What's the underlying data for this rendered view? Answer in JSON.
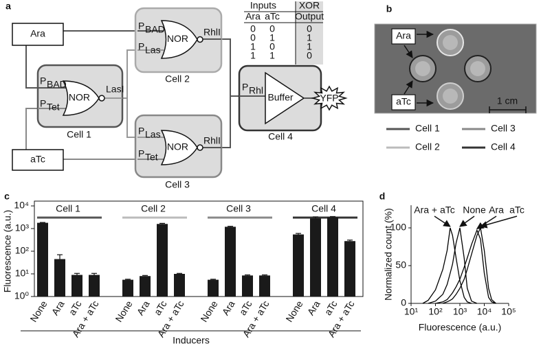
{
  "panel_a": {
    "label": "a",
    "inputs": [
      "Ara",
      "aTc"
    ],
    "cells": [
      "Cell 1",
      "Cell 2",
      "Cell 3",
      "Cell 4"
    ],
    "gates": [
      "NOR",
      "NOR",
      "NOR",
      "Buffer"
    ],
    "promoters": [
      {
        "main": "P",
        "sub": "BAD"
      },
      {
        "main": "P",
        "sub": "Tet"
      },
      {
        "main": "P",
        "sub": "BAD"
      },
      {
        "main": "P",
        "sub": "Las"
      },
      {
        "main": "P",
        "sub": "Las"
      },
      {
        "main": "P",
        "sub": "Tet"
      },
      {
        "main": "P",
        "sub": "Rhl"
      }
    ],
    "outputs": [
      "LasI",
      "RhlI",
      "RhlI"
    ],
    "reporter": "YFP",
    "truth_table": {
      "header": [
        "Inputs",
        "XOR"
      ],
      "columns": [
        "Ara",
        "aTc",
        "Output"
      ],
      "rows": [
        [
          0,
          0,
          0
        ],
        [
          0,
          1,
          1
        ],
        [
          1,
          0,
          1
        ],
        [
          1,
          1,
          0
        ]
      ]
    }
  },
  "panel_b": {
    "label": "b",
    "labels": [
      "Ara",
      "aTc"
    ],
    "scale": "1 cm",
    "legend": [
      {
        "name": "Cell 1",
        "color": "#555555"
      },
      {
        "name": "Cell 3",
        "color": "#888888"
      },
      {
        "name": "Cell 2",
        "color": "#bbbbbb"
      },
      {
        "name": "Cell 4",
        "color": "#333333"
      }
    ]
  },
  "chart_data": [
    {
      "type": "bar",
      "panel_label": "c",
      "y_label": "Fluorescence (a.u.)",
      "x_label": "Inducers",
      "categories": [
        "None",
        "Ara",
        "aTc",
        "Ara + aTc"
      ],
      "bar_color": "#1a1a1a",
      "log_y": true,
      "ylim": [
        1,
        10000
      ],
      "yticks": [
        {
          "value": 1,
          "label": "10⁰"
        },
        {
          "value": 10,
          "label": "10¹"
        },
        {
          "value": 100,
          "label": "10²"
        },
        {
          "value": 1000,
          "label": "10³"
        },
        {
          "value": 10000,
          "label": "10⁴"
        }
      ],
      "series": [
        {
          "name": "Cell 1",
          "color": "#555555",
          "values": [
            1800,
            45,
            9,
            9
          ],
          "errors": [
            60,
            25,
            1.5,
            1.5
          ]
        },
        {
          "name": "Cell 2",
          "color": "#bbbbbb",
          "values": [
            5.5,
            8,
            1600,
            10
          ],
          "errors": [
            0.3,
            0.5,
            100,
            0.5
          ]
        },
        {
          "name": "Cell 3",
          "color": "#888888",
          "values": [
            5.5,
            1200,
            8.5,
            8.5
          ],
          "errors": [
            0.3,
            60,
            0.5,
            0.5
          ]
        },
        {
          "name": "Cell 4",
          "color": "#333333",
          "values": [
            550,
            2800,
            3200,
            280
          ],
          "errors": [
            60,
            500,
            200,
            30
          ]
        }
      ]
    },
    {
      "type": "line",
      "panel_label": "d",
      "x_label": "Fluorescence (a.u.)",
      "y_label": "Normalized count (%)",
      "log_x": true,
      "xlim": [
        10,
        100000
      ],
      "xticks": [
        {
          "value": 10,
          "label": "10¹"
        },
        {
          "value": 100,
          "label": "10²"
        },
        {
          "value": 1000,
          "label": "10³"
        },
        {
          "value": 10000,
          "label": "10⁴"
        },
        {
          "value": 100000,
          "label": "10⁵"
        }
      ],
      "ylim": [
        0,
        130
      ],
      "yticks": [
        0,
        50,
        100
      ],
      "x": [
        30,
        50,
        100,
        200,
        300,
        400,
        500,
        700,
        1000,
        1500,
        2000,
        3000,
        5000,
        7000,
        10000,
        15000,
        20000,
        30000
      ],
      "series": [
        {
          "name": "Ara + aTc",
          "color": "#000000",
          "values": [
            0,
            4,
            18,
            45,
            70,
            100,
            90,
            60,
            30,
            8,
            2,
            0,
            null,
            null,
            null,
            null,
            null,
            null
          ]
        },
        {
          "name": "None",
          "color": "#000000",
          "values": [
            null,
            0,
            3,
            12,
            25,
            40,
            52,
            80,
            100,
            60,
            20,
            3,
            0,
            null,
            null,
            null,
            null,
            null
          ]
        },
        {
          "name": "Ara",
          "color": "#000000",
          "values": [
            null,
            null,
            0,
            2,
            5,
            10,
            14,
            22,
            32,
            48,
            60,
            78,
            97,
            85,
            40,
            8,
            2,
            0
          ]
        },
        {
          "name": "aTc",
          "color": "#000000",
          "values": [
            null,
            null,
            null,
            0,
            2,
            4,
            6,
            12,
            20,
            32,
            45,
            65,
            90,
            100,
            70,
            20,
            5,
            0
          ]
        }
      ]
    }
  ]
}
